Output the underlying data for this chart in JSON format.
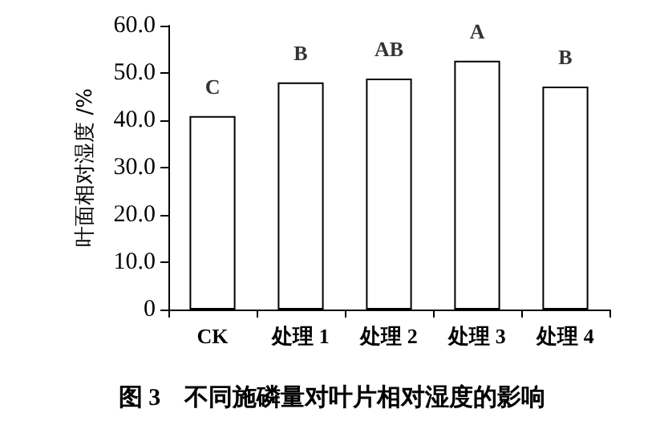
{
  "chart_data": {
    "type": "bar",
    "title": "图 3　不同施磷量对叶片相对湿度的影响",
    "ylabel": "叶面相对湿度 /%",
    "categories": [
      "CK",
      "处理 1",
      "处理 2",
      "处理 3",
      "处理 4"
    ],
    "values": [
      40.9,
      48.0,
      48.8,
      52.6,
      47.1
    ],
    "color": "#ffffff",
    "ylim": [
      0,
      60
    ],
    "yticks": [
      0,
      {
        "value": 10,
        "label": "10.0"
      },
      {
        "value": 20,
        "label": "20.0"
      },
      {
        "value": 30,
        "label": "30.0"
      },
      {
        "value": 40,
        "label": "40.0"
      },
      {
        "value": 50,
        "label": "50.0"
      },
      {
        "value": 60,
        "label": "60.0"
      }
    ],
    "grid": false,
    "annotations": [
      {
        "text": "C",
        "x": "CK",
        "y": 40.9
      },
      {
        "text": "B",
        "x": "处理 1",
        "y": 48.0
      },
      {
        "text": "AB",
        "x": "处理 2",
        "y": 48.8
      },
      {
        "text": "A",
        "x": "处理 3",
        "y": 52.6
      },
      {
        "text": "B",
        "x": "处理 4",
        "y": 47.1
      }
    ]
  }
}
